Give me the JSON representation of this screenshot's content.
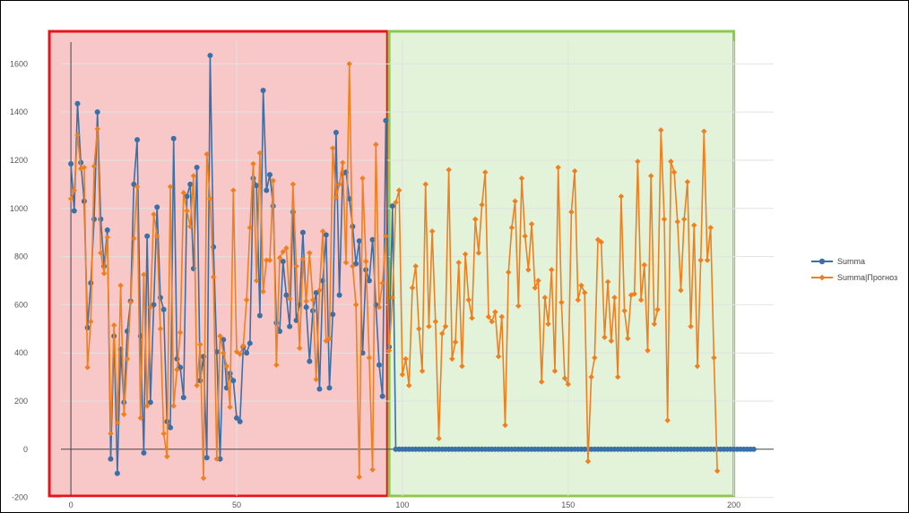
{
  "chart_data": {
    "type": "line",
    "title": "",
    "xlabel": "",
    "ylabel": "",
    "xlim": [
      -3,
      212
    ],
    "ylim": [
      -220,
      1750
    ],
    "x_ticks": [
      0,
      50,
      100,
      150,
      200
    ],
    "y_ticks": [
      -200,
      0,
      200,
      400,
      600,
      800,
      1000,
      1200,
      1400,
      1600
    ],
    "grid": true,
    "legend_position": "right",
    "regions": [
      {
        "x_start": -6.5,
        "x_end": 95.5,
        "fill": "#f8c8c8",
        "border": "#e8141c"
      },
      {
        "x_start": 96,
        "x_end": 200,
        "fill": "#e3f3da",
        "border": "#8cc84b"
      }
    ],
    "series": [
      {
        "name": "Summa",
        "color": "#3a6fa8",
        "x_start": 0,
        "values": [
          1185,
          990,
          1435,
          1190,
          1030,
          505,
          690,
          955,
          1400,
          955,
          760,
          910,
          -40,
          470,
          -100,
          415,
          195,
          490,
          615,
          1100,
          1285,
          470,
          -15,
          885,
          195,
          600,
          1005,
          630,
          580,
          115,
          90,
          1290,
          375,
          340,
          215,
          1050,
          1100,
          750,
          1170,
          285,
          385,
          -35,
          1635,
          840,
          405,
          -40,
          455,
          255,
          315,
          285,
          130,
          115,
          425,
          400,
          440,
          1125,
          1095,
          555,
          1490,
          1075,
          1140,
          1010,
          525,
          490,
          780,
          640,
          510,
          985,
          535,
          600,
          900,
          590,
          365,
          575,
          650,
          250,
          700,
          890,
          255,
          560,
          1315,
          640,
          1145,
          1150,
          1040,
          925,
          770,
          865,
          400,
          745,
          700,
          870,
          600,
          350,
          220,
          1365,
          425,
          1010,
          0,
          0,
          0,
          0,
          0,
          0,
          0,
          0,
          0,
          0,
          0,
          0,
          0,
          0,
          0,
          0,
          0,
          0,
          0,
          0,
          0,
          0,
          0,
          0,
          0,
          0,
          0,
          0,
          0,
          0,
          0,
          0,
          0,
          0,
          0,
          0,
          0,
          0,
          0,
          0,
          0,
          0,
          0,
          0,
          0,
          0,
          0,
          0,
          0,
          0,
          0,
          0,
          0,
          0,
          0,
          0,
          0,
          0,
          0,
          0,
          0,
          0,
          0,
          0,
          0,
          0,
          0,
          0,
          0,
          0,
          0,
          0,
          0,
          0,
          0,
          0,
          0,
          0,
          0,
          0,
          0,
          0,
          0,
          0,
          0,
          0,
          0,
          0,
          0,
          0,
          0,
          0,
          0,
          0,
          0,
          0,
          0,
          0,
          0,
          0,
          0,
          0,
          0,
          0,
          0,
          0,
          0,
          0,
          0
        ]
      },
      {
        "name": "Summa|Прогноз",
        "color": "#f07f1e",
        "x_start": 0,
        "values": [
          1040,
          1075,
          1305,
          1165,
          1170,
          340,
          530,
          1175,
          1330,
          815,
          730,
          880,
          65,
          515,
          110,
          680,
          145,
          375,
          610,
          875,
          1090,
          130,
          725,
          180,
          590,
          975,
          885,
          500,
          65,
          -30,
          1090,
          180,
          330,
          485,
          1065,
          990,
          925,
          1135,
          265,
          435,
          -120,
          1225,
          1040,
          715,
          -40,
          470,
          400,
          345,
          175,
          1075,
          405,
          395,
          430,
          620,
          920,
          1185,
          700,
          1230,
          655,
          785,
          785,
          1115,
          350,
          795,
          820,
          835,
          625,
          1100,
          760,
          420,
          790,
          615,
          815,
          620,
          290,
          660,
          905,
          450,
          460,
          1250,
          1045,
          1100,
          1190,
          775,
          1600,
          760,
          600,
          -115,
          1125,
          780,
          380,
          -85,
          1265,
          590,
          690,
          885,
          410,
          630,
          1025,
          1075,
          310,
          375,
          265,
          670,
          760,
          500,
          325,
          1100,
          510,
          905,
          530,
          45,
          480,
          510,
          1160,
          375,
          445,
          775,
          345,
          810,
          620,
          545,
          955,
          815,
          1015,
          1150,
          550,
          530,
          570,
          385,
          550,
          100,
          735,
          920,
          1030,
          595,
          1125,
          885,
          745,
          935,
          670,
          700,
          280,
          630,
          520,
          745,
          325,
          1170,
          610,
          295,
          270,
          985,
          1155,
          620,
          680,
          650,
          -50,
          300,
          380,
          870,
          860,
          465,
          695,
          450,
          630,
          300,
          1050,
          575,
          460,
          640,
          645,
          1195,
          620,
          765,
          410,
          1135,
          520,
          580,
          1325,
          955,
          120,
          1195,
          1150,
          945,
          660,
          955,
          1110,
          510,
          930,
          345,
          785,
          1320,
          785,
          920,
          380,
          -90
        ]
      }
    ]
  }
}
